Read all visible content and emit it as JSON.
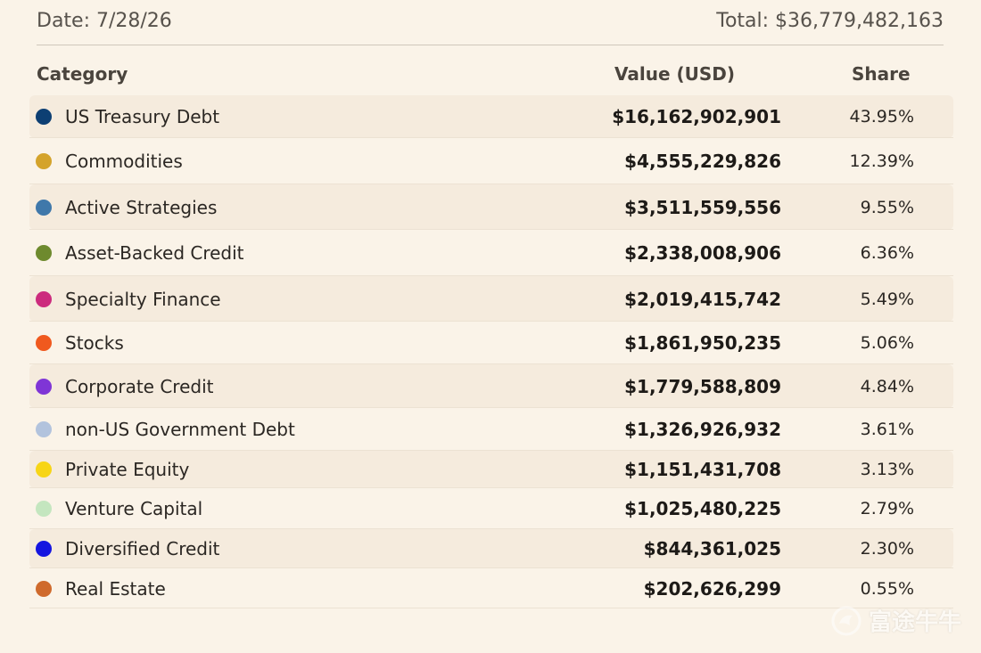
{
  "header": {
    "date": "Date: 7/28/26",
    "total": "Total: $36,779,482,163"
  },
  "table": {
    "headers": {
      "category": "Category",
      "value": "Value (USD)",
      "share": "Share"
    },
    "rows": [
      {
        "category": "US Treasury Debt",
        "value": "$16,162,902,901",
        "share": "43.95%",
        "color": "#0d3f73"
      },
      {
        "category": "Commodities",
        "value": "$4,555,229,826",
        "share": "12.39%",
        "color": "#d4a32b"
      },
      {
        "category": "Active Strategies",
        "value": "$3,511,559,556",
        "share": "9.55%",
        "color": "#3f78aa"
      },
      {
        "category": "Asset-Backed Credit",
        "value": "$2,338,008,906",
        "share": "6.36%",
        "color": "#6e8a2e"
      },
      {
        "category": "Specialty Finance",
        "value": "$2,019,415,742",
        "share": "5.49%",
        "color": "#cc2b7d"
      },
      {
        "category": "Stocks",
        "value": "$1,861,950,235",
        "share": "5.06%",
        "color": "#f0591e"
      },
      {
        "category": "Corporate Credit",
        "value": "$1,779,588,809",
        "share": "4.84%",
        "color": "#7f35d6"
      },
      {
        "category": "non-US Government Debt",
        "value": "$1,326,926,932",
        "share": "3.61%",
        "color": "#b2c3dd"
      },
      {
        "category": "Private Equity",
        "value": "$1,151,431,708",
        "share": "3.13%",
        "color": "#f7d516"
      },
      {
        "category": "Venture Capital",
        "value": "$1,025,480,225",
        "share": "2.79%",
        "color": "#c4e6bf"
      },
      {
        "category": "Diversified Credit",
        "value": "$844,361,025",
        "share": "2.30%",
        "color": "#1515e0"
      },
      {
        "category": "Real Estate",
        "value": "$202,626,299",
        "share": "0.55%",
        "color": "#cf6a2c"
      }
    ]
  },
  "watermark": {
    "text": "富途牛牛",
    "icon": "futu-logo-icon"
  }
}
